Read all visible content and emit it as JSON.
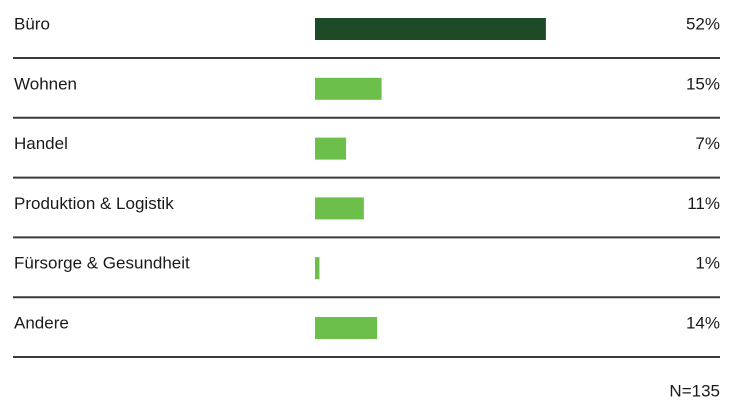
{
  "chart_data": {
    "type": "bar",
    "orientation": "horizontal",
    "categories": [
      "Büro",
      "Wohnen",
      "Handel",
      "Produktion & Logistik",
      "Fürsorge & Gesundheit",
      "Andere"
    ],
    "values": [
      52,
      15,
      7,
      11,
      1,
      14
    ],
    "value_labels": [
      "52%",
      "15%",
      "7%",
      "11%",
      "1%",
      "14%"
    ],
    "colors": [
      "#1e4b27",
      "#6cbf4a",
      "#6cbf4a",
      "#6cbf4a",
      "#6cbf4a",
      "#6cbf4a"
    ],
    "note": "N=135"
  }
}
